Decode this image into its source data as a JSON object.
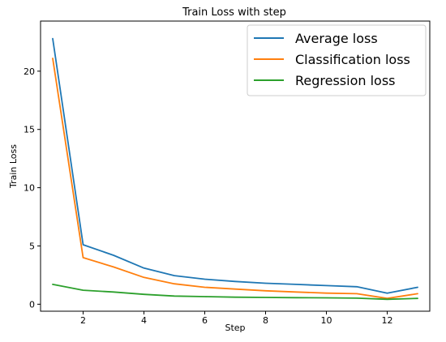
{
  "chart_data": {
    "type": "line",
    "title": "Train Loss with step",
    "xlabel": "Step",
    "ylabel": "Train Loss",
    "xlim": [
      0.6,
      13.4
    ],
    "ylim": [
      -0.6,
      24.3
    ],
    "x_ticks": [
      2,
      4,
      6,
      8,
      10,
      12
    ],
    "y_ticks": [
      0,
      5,
      10,
      15,
      20
    ],
    "grid": false,
    "legend_position": "top-right",
    "x": [
      1,
      2,
      3,
      4,
      5,
      6,
      7,
      8,
      9,
      10,
      11,
      12,
      13
    ],
    "series": [
      {
        "name": "Average loss",
        "color": "#1f77b4",
        "values": [
          22.8,
          5.1,
          4.2,
          3.1,
          2.45,
          2.15,
          1.95,
          1.8,
          1.7,
          1.6,
          1.5,
          0.95,
          1.45
        ]
      },
      {
        "name": "Classification loss",
        "color": "#ff7f0e",
        "values": [
          21.1,
          4.0,
          3.2,
          2.3,
          1.75,
          1.45,
          1.3,
          1.15,
          1.05,
          0.95,
          0.9,
          0.5,
          0.9
        ]
      },
      {
        "name": "Regression loss",
        "color": "#2ca02c",
        "values": [
          1.7,
          1.2,
          1.05,
          0.85,
          0.7,
          0.65,
          0.6,
          0.58,
          0.56,
          0.55,
          0.52,
          0.42,
          0.5
        ]
      }
    ]
  }
}
